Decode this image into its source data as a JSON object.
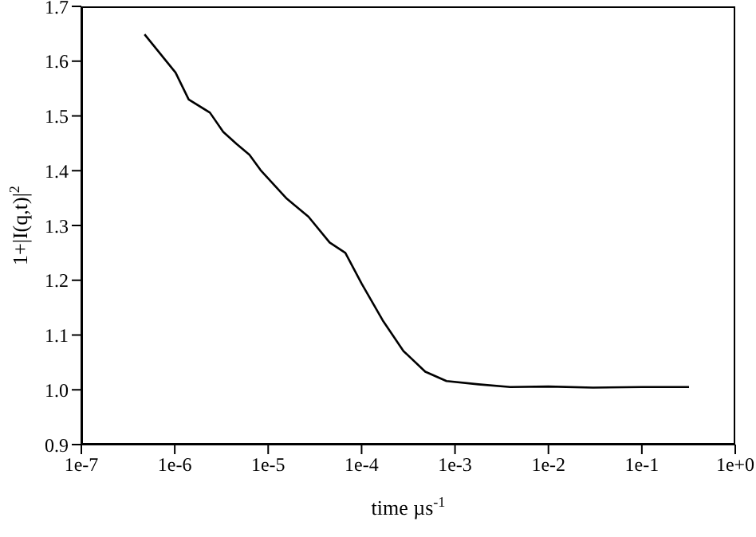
{
  "chart_data": {
    "type": "line",
    "xlabel": "time µs$^{-1}$",
    "ylabel": "1+|I(q,t)|$^{2}$",
    "log": "x",
    "series": [
      {
        "color": "#000000",
        "x": [
          4.75e-07,
          1.02e-06,
          1.41e-06,
          2.38e-06,
          3.3e-06,
          4.57e-06,
          6.3e-06,
          8.3e-06,
          1.58e-05,
          2.7e-05,
          4.55e-05,
          6.7e-05,
          0.0001,
          0.000168,
          0.00028,
          0.00048,
          0.00081,
          0.00178,
          0.0039,
          0.01,
          0.03,
          0.1,
          0.32
        ],
        "values": [
          1.649,
          1.579,
          1.53,
          1.506,
          1.471,
          1.449,
          1.429,
          1.401,
          1.349,
          1.316,
          1.269,
          1.25,
          1.194,
          1.127,
          1.071,
          1.033,
          1.016,
          1.01,
          1.005,
          1.006,
          1.004,
          1.005,
          1.005
        ]
      }
    ],
    "xlim": [
      1e-07,
      1
    ],
    "xticks": [
      {
        "value": 1e-07,
        "label": "1e-7"
      },
      {
        "value": 1e-06,
        "label": "1e-6"
      },
      {
        "value": 1e-05,
        "label": "1e-5"
      },
      {
        "value": 0.0001,
        "label": "1e-4"
      },
      {
        "value": 0.001,
        "label": "1e-3"
      },
      {
        "value": 0.01,
        "label": "1e-2"
      },
      {
        "value": 0.1,
        "label": "1e-1"
      },
      {
        "value": 1,
        "label": "1e+0"
      }
    ],
    "ylim": [
      0.9,
      1.7
    ],
    "yticks": [
      {
        "value": 0.9,
        "label": "0.9"
      },
      {
        "value": 1.0,
        "label": "1.0"
      },
      {
        "value": 1.1,
        "label": "1.1"
      },
      {
        "value": 1.2,
        "label": "1.2"
      },
      {
        "value": 1.3,
        "label": "1.3"
      },
      {
        "value": 1.4,
        "label": "1.4"
      },
      {
        "value": 1.5,
        "label": "1.5"
      },
      {
        "value": 1.6,
        "label": "1.6"
      },
      {
        "value": 1.7,
        "label": "1.7"
      }
    ],
    "grid": false,
    "legend": false,
    "marker": "none",
    "line_style": "solid"
  }
}
